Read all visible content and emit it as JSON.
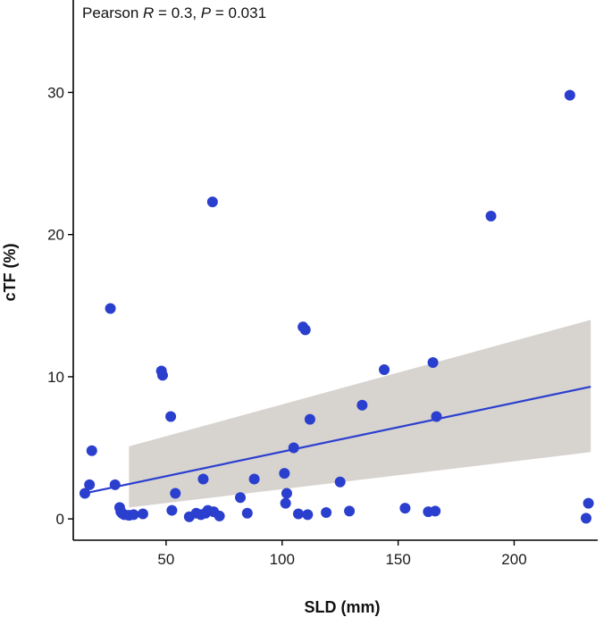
{
  "chart_data": {
    "type": "scatter",
    "title": "",
    "annotation": {
      "prefix": "Pearson ",
      "r_symbol": "R",
      "r_part": " = 0.3, ",
      "p_symbol": "P",
      "p_part": " = 0.031"
    },
    "xlabel": "SLD (mm)",
    "ylabel": "cTF (%)",
    "xlim": [
      10,
      236
    ],
    "ylim": [
      -1.5,
      36.5
    ],
    "xticks": [
      50,
      100,
      150,
      200
    ],
    "yticks": [
      0,
      10,
      20,
      30
    ],
    "grid": false,
    "colors": {
      "points": "#2b3fcf",
      "fit_line": "#2b3fcf",
      "ci_band": "#d7d3cf",
      "axis": "#000000"
    },
    "points": {
      "x": [
        15,
        17,
        18,
        26,
        28,
        30,
        30.5,
        31,
        32,
        34,
        36,
        40,
        48,
        48.5,
        52,
        52.5,
        54,
        60,
        63,
        65,
        66,
        67,
        68,
        70,
        70.5,
        73,
        82,
        85,
        88,
        101,
        101.5,
        102,
        105,
        107,
        109,
        110,
        111,
        112,
        119,
        125,
        129,
        134.5,
        144,
        153,
        163,
        165,
        166,
        166.5,
        190,
        224,
        231,
        232
      ],
      "y": [
        1.8,
        2.4,
        4.8,
        14.8,
        2.4,
        0.8,
        0.5,
        0.4,
        0.3,
        0.25,
        0.3,
        0.35,
        10.4,
        10.1,
        7.2,
        0.6,
        1.8,
        0.15,
        0.4,
        0.3,
        2.8,
        0.4,
        0.6,
        22.3,
        0.5,
        0.2,
        1.5,
        0.4,
        2.8,
        3.2,
        1.1,
        1.8,
        5.0,
        0.35,
        13.5,
        13.3,
        0.3,
        7.0,
        0.45,
        2.6,
        0.55,
        8.0,
        10.5,
        0.75,
        0.5,
        11.0,
        0.55,
        7.2,
        21.3,
        29.8,
        0.05,
        1.1
      ]
    },
    "fit_line": {
      "x": [
        15,
        233
      ],
      "y": [
        1.8,
        9.3
      ]
    },
    "confidence_band": {
      "x": [
        34,
        233
      ],
      "upper": [
        5.1,
        14.0
      ],
      "lower": [
        0.8,
        4.7
      ]
    }
  }
}
